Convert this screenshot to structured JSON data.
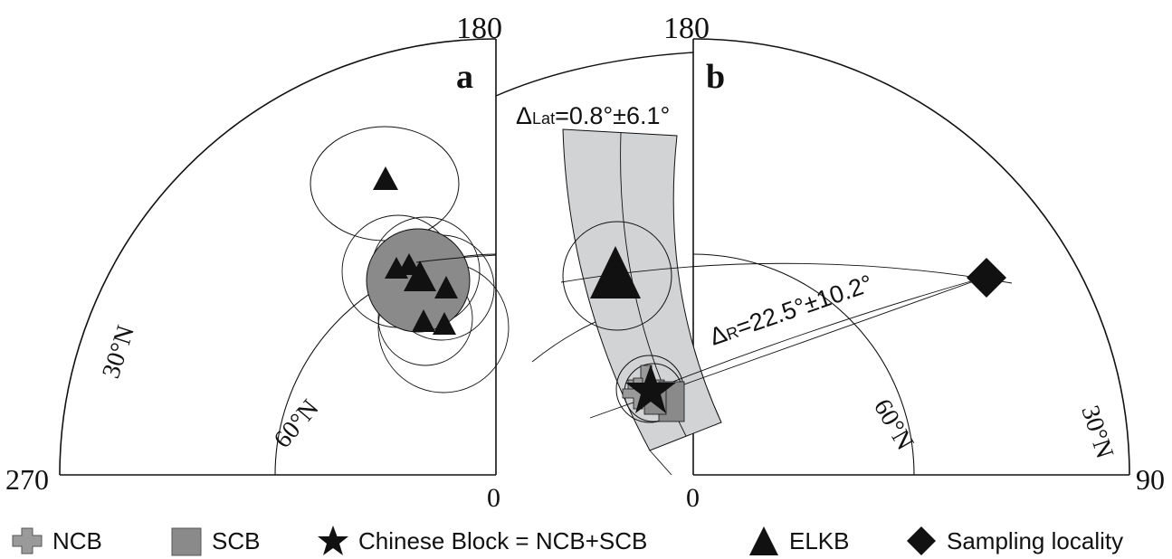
{
  "panel_a": {
    "label": "a",
    "top_label": "180",
    "left_label": "270",
    "bottom_label": "0",
    "circle_30": "30°N",
    "circle_60": "60°N"
  },
  "panel_b": {
    "label": "b",
    "top_label": "180",
    "right_label": "90",
    "bottom_label": "0",
    "circle_30": "30°N",
    "circle_60": "60°N",
    "delta_lat": "ΔLat=0.8°±6.1°",
    "delta_lat_symbol": "Δ",
    "delta_lat_sub": "Lat",
    "delta_lat_value": "=0.8°±6.1°",
    "delta_r_symbol": "Δ",
    "delta_r_sub": "R",
    "delta_r_value": "=22.5°±10.2°"
  },
  "legend": [
    {
      "icon": "cross-icon",
      "label": "NCB"
    },
    {
      "icon": "square-icon",
      "label": "SCB"
    },
    {
      "icon": "star-icon",
      "label": "Chinese Block = NCB+SCB"
    },
    {
      "icon": "triangle-icon",
      "label": "ELKB"
    },
    {
      "icon": "diamond-icon",
      "label": "Sampling locality"
    }
  ],
  "colors": {
    "ink": "#111111",
    "mean_circle_fill": "#8a8a8a",
    "band_fill": "#d2d3d5",
    "ncb_fill": "#9a9a9a",
    "scb_fill": "#8a8a8a"
  }
}
